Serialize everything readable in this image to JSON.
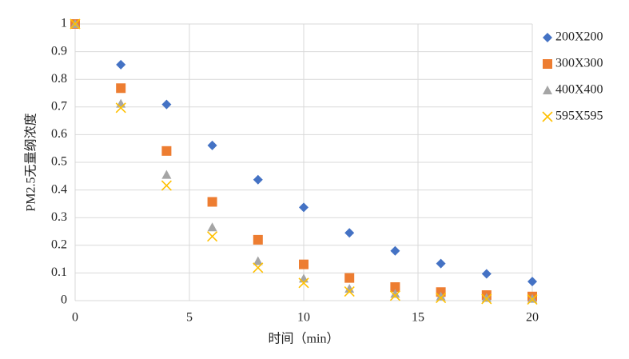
{
  "chart_data": {
    "type": "scatter",
    "x_label": "时间（min）",
    "y_label": "PM2.5无量纲浓度",
    "x": [
      0,
      2,
      4,
      6,
      8,
      10,
      12,
      14,
      16,
      18,
      20
    ],
    "series": [
      {
        "name": "200X200",
        "color": "#4472c4",
        "marker": "diamond",
        "values": [
          1,
          0.853,
          0.709,
          0.561,
          0.437,
          0.337,
          0.245,
          0.18,
          0.134,
          0.097,
          0.069
        ]
      },
      {
        "name": "300X300",
        "color": "#ed7d31",
        "marker": "square",
        "values": [
          1,
          0.768,
          0.541,
          0.357,
          0.22,
          0.131,
          0.082,
          0.049,
          0.031,
          0.02,
          0.015
        ]
      },
      {
        "name": "400X400",
        "color": "#a5a5a5",
        "marker": "triangle",
        "values": [
          1,
          0.712,
          0.455,
          0.265,
          0.143,
          0.08,
          0.043,
          0.025,
          0.015,
          0.01,
          0.007
        ]
      },
      {
        "name": "595X595",
        "color": "#ffc000",
        "marker": "x",
        "values": [
          1,
          0.697,
          0.416,
          0.232,
          0.119,
          0.064,
          0.033,
          0.018,
          0.01,
          0.006,
          0.004
        ]
      }
    ],
    "xlim": [
      0,
      20
    ],
    "xticks": [
      0,
      5,
      10,
      15,
      20
    ],
    "ylim": [
      0,
      1
    ],
    "yticks": [
      0,
      0.1,
      0.2,
      0.3,
      0.4,
      0.5,
      0.6,
      0.7,
      0.8,
      0.9,
      1
    ],
    "grid": true,
    "legend": "right"
  }
}
